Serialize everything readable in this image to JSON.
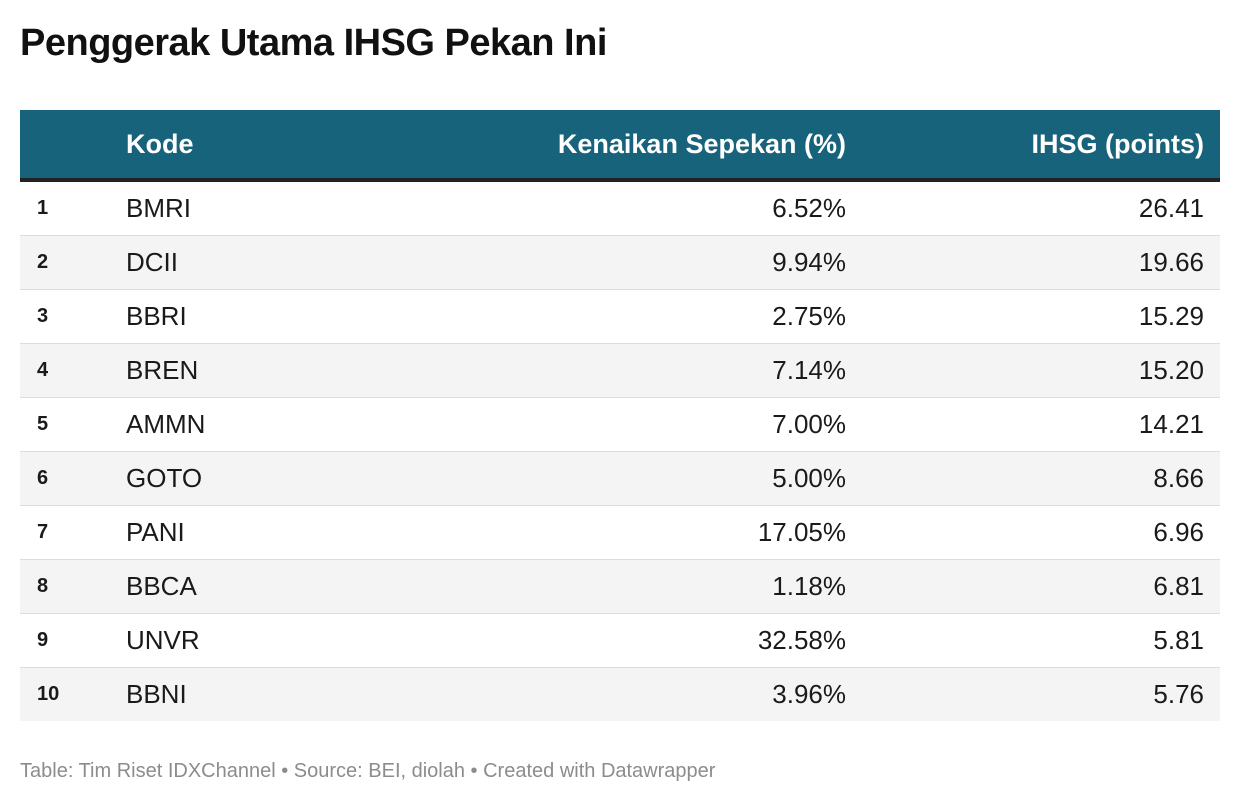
{
  "title": "Penggerak Utama IHSG Pekan Ini",
  "footer": "Table: Tim Riset IDXChannel • Source: BEI, diolah • Created with Datawrapper",
  "colors": {
    "header_bg": "#18637c",
    "header_text": "#ffffff",
    "header_rule": "#222222",
    "row_alt_bg": "#f4f4f4",
    "footer_text": "#8c8c8c"
  },
  "chart_data": {
    "type": "table",
    "title": "Penggerak Utama IHSG Pekan Ini",
    "columns": [
      "",
      "Kode",
      "Kenaikan Sepekan (%)",
      "IHSG (points)"
    ],
    "rows": [
      {
        "rank": "1",
        "kode": "BMRI",
        "kenaikan": "6.52%",
        "ihsg": "26.41"
      },
      {
        "rank": "2",
        "kode": "DCII",
        "kenaikan": "9.94%",
        "ihsg": "19.66"
      },
      {
        "rank": "3",
        "kode": "BBRI",
        "kenaikan": "2.75%",
        "ihsg": "15.29"
      },
      {
        "rank": "4",
        "kode": "BREN",
        "kenaikan": "7.14%",
        "ihsg": "15.20"
      },
      {
        "rank": "5",
        "kode": "AMMN",
        "kenaikan": "7.00%",
        "ihsg": "14.21"
      },
      {
        "rank": "6",
        "kode": "GOTO",
        "kenaikan": "5.00%",
        "ihsg": "8.66"
      },
      {
        "rank": "7",
        "kode": "PANI",
        "kenaikan": "17.05%",
        "ihsg": "6.96"
      },
      {
        "rank": "8",
        "kode": "BBCA",
        "kenaikan": "1.18%",
        "ihsg": "6.81"
      },
      {
        "rank": "9",
        "kode": "UNVR",
        "kenaikan": "32.58%",
        "ihsg": "5.81"
      },
      {
        "rank": "10",
        "kode": "BBNI",
        "kenaikan": "3.96%",
        "ihsg": "5.76"
      }
    ]
  }
}
